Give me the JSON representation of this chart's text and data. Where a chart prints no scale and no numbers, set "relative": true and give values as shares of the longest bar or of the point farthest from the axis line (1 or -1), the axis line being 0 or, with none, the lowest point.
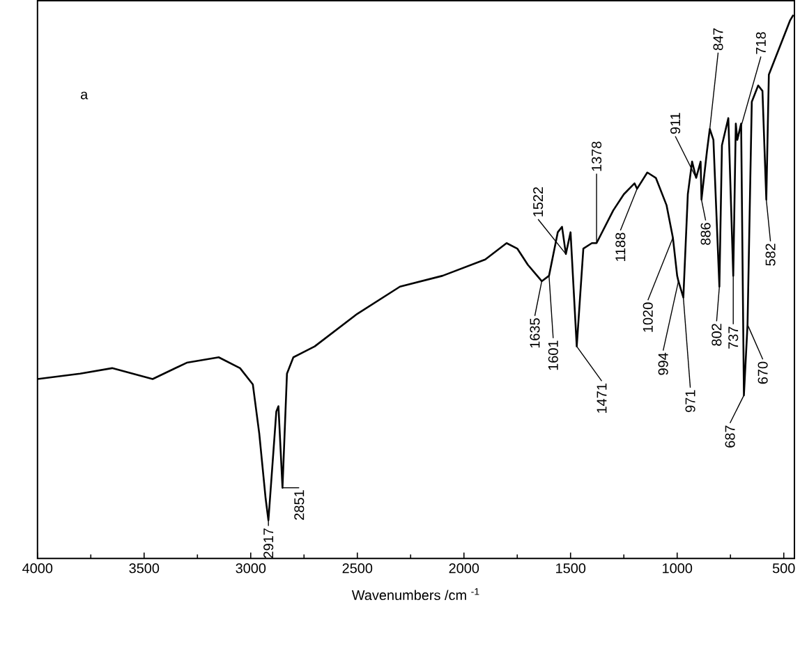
{
  "chart_data": {
    "type": "line",
    "relative": true,
    "xlabel": "Wavenumbers /cm $^{-1}$",
    "xlim": [
      4000,
      450
    ],
    "xticks": [
      4000,
      3500,
      3000,
      2500,
      2000,
      1500,
      1000,
      500
    ],
    "x": [
      4000,
      3800,
      3650,
      3460,
      3300,
      3150,
      3050,
      2990,
      2960,
      2930,
      2917,
      2880,
      2870,
      2851,
      2830,
      2800,
      2700,
      2500,
      2300,
      2100,
      1900,
      1800,
      1750,
      1700,
      1635,
      1601,
      1560,
      1540,
      1522,
      1500,
      1471,
      1440,
      1400,
      1378,
      1300,
      1250,
      1200,
      1188,
      1140,
      1100,
      1050,
      1020,
      1000,
      994,
      971,
      950,
      930,
      911,
      890,
      886,
      860,
      847,
      830,
      802,
      790,
      760,
      737,
      725,
      718,
      700,
      687,
      670,
      650,
      620,
      600,
      582,
      570,
      540,
      500,
      470,
      455
    ],
    "series": [
      {
        "color": "#000000",
        "line_style": "solid",
        "values": [
          0.33,
          0.34,
          0.35,
          0.33,
          0.36,
          0.37,
          0.35,
          0.32,
          0.23,
          0.11,
          0.07,
          0.27,
          0.28,
          0.13,
          0.34,
          0.37,
          0.39,
          0.45,
          0.5,
          0.52,
          0.55,
          0.58,
          0.57,
          0.54,
          0.51,
          0.52,
          0.6,
          0.61,
          0.56,
          0.6,
          0.39,
          0.57,
          0.58,
          0.58,
          0.64,
          0.67,
          0.69,
          0.68,
          0.71,
          0.7,
          0.65,
          0.59,
          0.52,
          0.51,
          0.48,
          0.67,
          0.73,
          0.7,
          0.73,
          0.66,
          0.75,
          0.79,
          0.77,
          0.5,
          0.76,
          0.81,
          0.52,
          0.8,
          0.77,
          0.8,
          0.3,
          0.43,
          0.84,
          0.87,
          0.86,
          0.66,
          0.89,
          0.92,
          0.96,
          0.99,
          1.0
        ]
      }
    ],
    "annotations": [
      "a",
      {
        "text": "2917",
        "x": 2917,
        "y": 0.07
      },
      {
        "text": "2851",
        "x": 2851,
        "y": 0.13
      },
      {
        "text": "1635",
        "x": 1635,
        "y": 0.51
      },
      {
        "text": "1601",
        "x": 1601,
        "y": 0.52
      },
      {
        "text": "1522",
        "x": 1522,
        "y": 0.56
      },
      {
        "text": "1471",
        "x": 1471,
        "y": 0.39
      },
      {
        "text": "1378",
        "x": 1378,
        "y": 0.58
      },
      {
        "text": "1188",
        "x": 1188,
        "y": 0.68
      },
      {
        "text": "1020",
        "x": 1020,
        "y": 0.59
      },
      {
        "text": "994",
        "x": 994,
        "y": 0.51
      },
      {
        "text": "971",
        "x": 971,
        "y": 0.48
      },
      {
        "text": "911",
        "x": 911,
        "y": 0.7
      },
      {
        "text": "886",
        "x": 886,
        "y": 0.66
      },
      {
        "text": "847",
        "x": 847,
        "y": 0.79
      },
      {
        "text": "802",
        "x": 802,
        "y": 0.5
      },
      {
        "text": "737",
        "x": 737,
        "y": 0.52
      },
      {
        "text": "718",
        "x": 718,
        "y": 0.77
      },
      {
        "text": "687",
        "x": 687,
        "y": 0.3
      },
      {
        "text": "670",
        "x": 670,
        "y": 0.43
      },
      {
        "text": "582",
        "x": 582,
        "y": 0.66
      }
    ]
  }
}
